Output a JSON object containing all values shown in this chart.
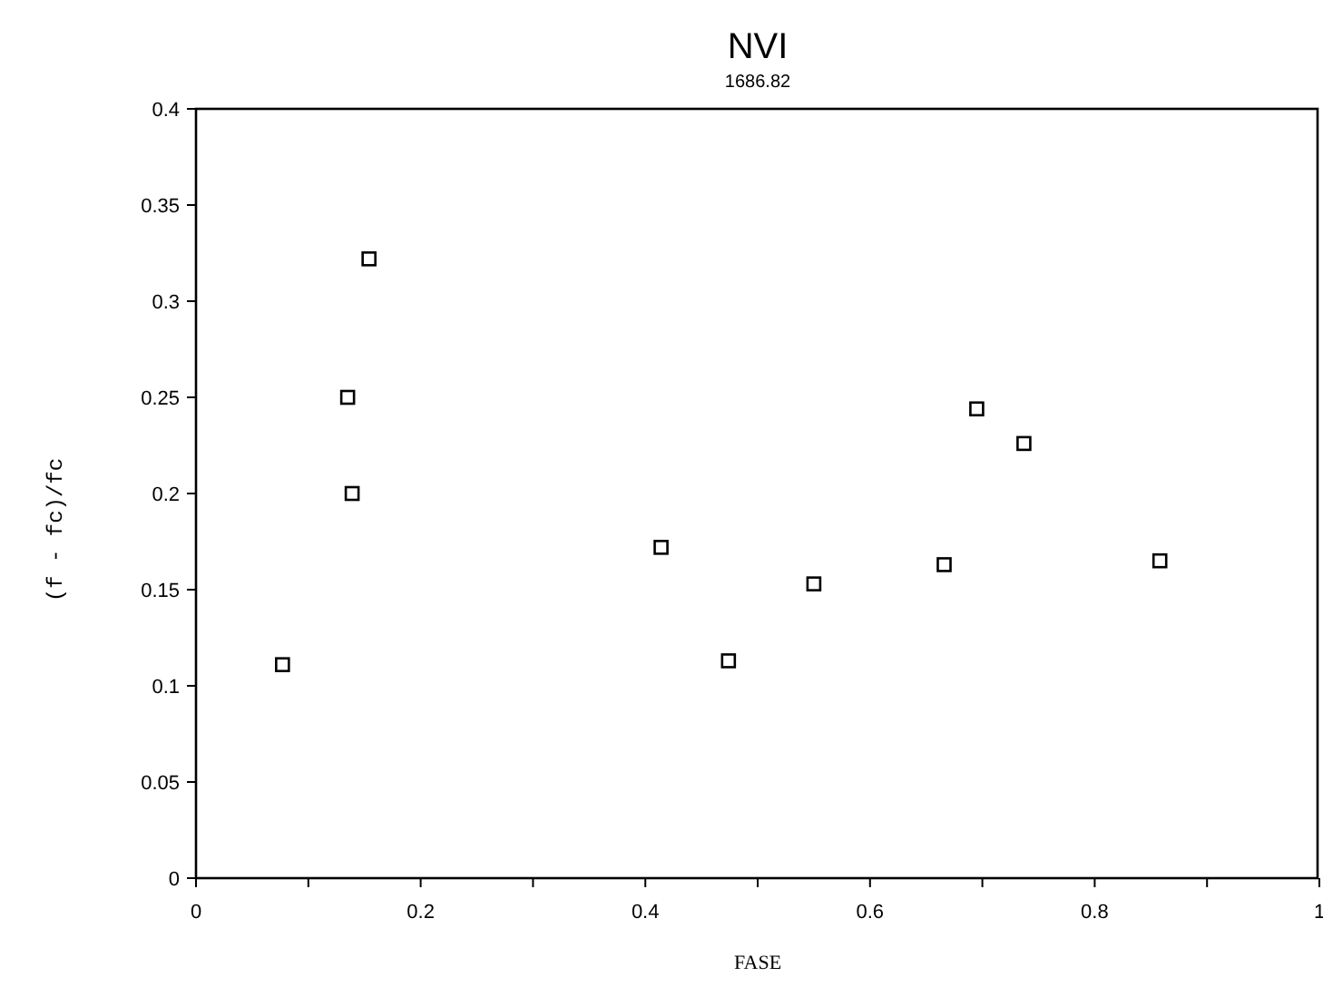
{
  "chart_data": {
    "type": "scatter",
    "title": "NVI",
    "subtitle": "1686.82",
    "xlabel": "FASE",
    "ylabel": "(f - fc)/fc",
    "x": [
      0.077,
      0.135,
      0.139,
      0.154,
      0.414,
      0.474,
      0.55,
      0.666,
      0.695,
      0.737,
      0.858
    ],
    "series": [
      {
        "color": "#000000",
        "values": [
          0.111,
          0.25,
          0.2,
          0.322,
          0.172,
          0.113,
          0.153,
          0.163,
          0.244,
          0.226,
          0.165
        ]
      }
    ],
    "xlim": [
      0,
      1
    ],
    "ylim": [
      0,
      0.4
    ],
    "xticks": [
      0,
      {
        "value": 0.1,
        "label": null
      },
      0.2,
      {
        "value": 0.3,
        "label": null
      },
      0.4,
      {
        "value": 0.5,
        "label": null
      },
      0.6,
      {
        "value": 0.7,
        "label": null
      },
      0.8,
      {
        "value": 0.9,
        "label": null
      },
      1
    ],
    "yticks": [
      0,
      0.05,
      0.1,
      0.15,
      0.2,
      0.25,
      0.3,
      0.35,
      0.4
    ],
    "marker": "square",
    "grid": false
  }
}
